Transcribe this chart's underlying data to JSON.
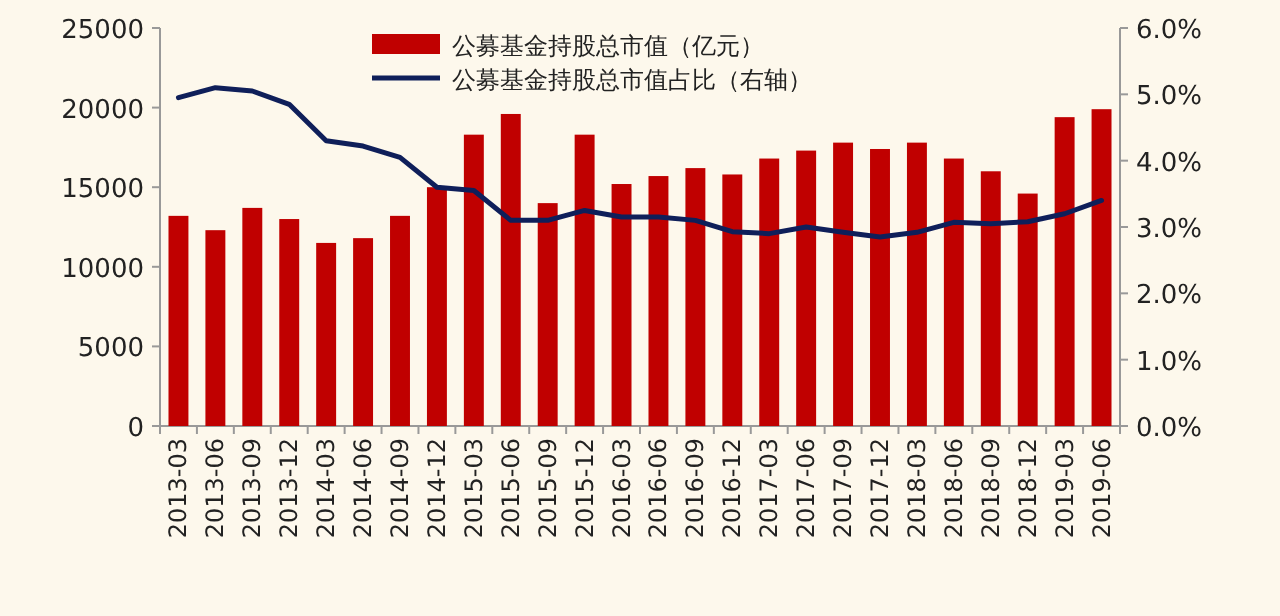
{
  "chart_data": {
    "type": "bar",
    "categories": [
      "2013-03",
      "2013-06",
      "2013-09",
      "2013-12",
      "2014-03",
      "2014-06",
      "2014-09",
      "2014-12",
      "2015-03",
      "2015-06",
      "2015-09",
      "2015-12",
      "2016-03",
      "2016-06",
      "2016-09",
      "2016-12",
      "2017-03",
      "2017-06",
      "2017-09",
      "2017-12",
      "2018-03",
      "2018-06",
      "2018-09",
      "2018-12",
      "2019-03",
      "2019-06"
    ],
    "series": [
      {
        "name": "公募基金持股总市值（亿元）",
        "color": "#c00000",
        "values": [
          13200,
          12300,
          13700,
          13000,
          11500,
          11800,
          13200,
          15000,
          18300,
          19600,
          14000,
          18300,
          15200,
          15700,
          16200,
          15800,
          16800,
          17300,
          17800,
          17400,
          17800,
          16800,
          16000,
          14600,
          19400,
          19900
        ]
      },
      {
        "name": "公募基金持股总市值占比（右轴）",
        "type": "line",
        "axis": "y2",
        "color": "#0f1f5a",
        "values": [
          4.95,
          5.1,
          5.05,
          4.85,
          4.3,
          4.22,
          4.05,
          3.6,
          3.55,
          3.1,
          3.1,
          3.25,
          3.15,
          3.15,
          3.1,
          2.93,
          2.9,
          3.0,
          2.92,
          2.85,
          2.92,
          3.07,
          3.05,
          3.08,
          3.2,
          3.4
        ]
      }
    ],
    "ylim": [
      0,
      25000
    ],
    "yticks": [
      0,
      5000,
      10000,
      15000,
      20000,
      25000
    ],
    "y2lim": [
      0,
      6
    ],
    "y2ticks": [
      {
        "value": 0,
        "label": "0.0%"
      },
      {
        "value": 1,
        "label": "1.0%"
      },
      {
        "value": 2,
        "label": "2.0%"
      },
      {
        "value": 3,
        "label": "3.0%"
      },
      {
        "value": 4,
        "label": "4.0%"
      },
      {
        "value": 5,
        "label": "5.0%"
      },
      {
        "value": 6,
        "label": "6.0%"
      }
    ],
    "legend": "top",
    "grid": false
  }
}
